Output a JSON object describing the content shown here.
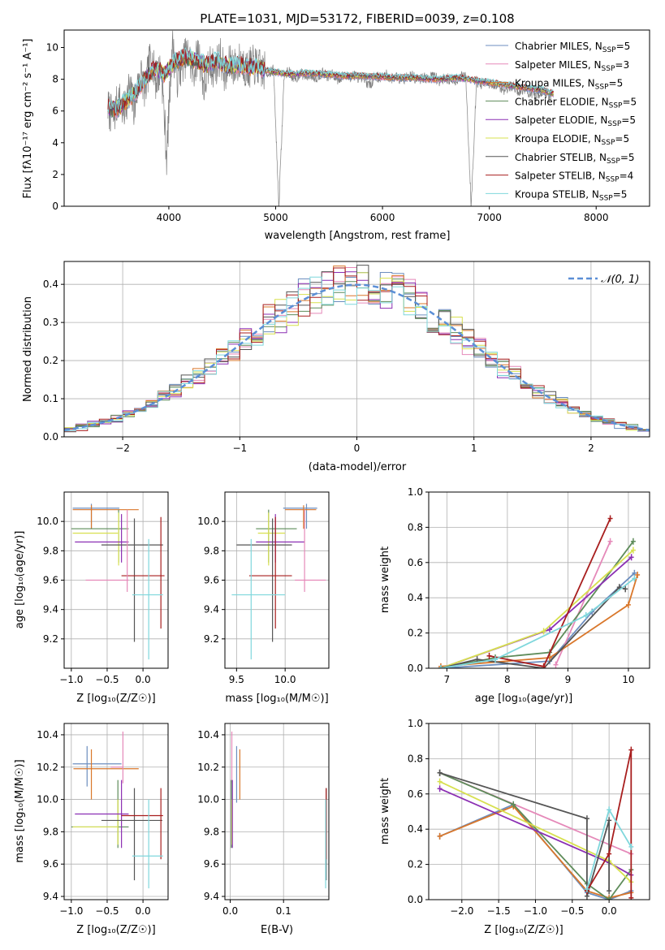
{
  "chart_data": [
    {
      "id": "spectrum",
      "type": "line",
      "title": "PLATE=1031, MJD=53172, FIBERID=0039, z=0.108",
      "xlabel": "wavelength [Angstrom, rest frame]",
      "ylabel": "Flux [fλ10⁻¹⁷ erg cm⁻² s⁻¹ A⁻¹]",
      "xlim": [
        3020,
        8500
      ],
      "ylim": [
        0,
        11.1
      ],
      "xticks": [
        4000,
        5000,
        6000,
        7000,
        8000
      ],
      "yticks": [
        0,
        2,
        4,
        6,
        8,
        10
      ],
      "grid": false,
      "legend_position": "right",
      "observed_color": "#808080",
      "observed": {
        "x": [
          3430,
          3480,
          3530,
          3580,
          3630,
          3680,
          3730,
          3780,
          3830,
          3880,
          3930,
          3980,
          4030,
          4080,
          4130,
          4180,
          4230,
          4280,
          4330,
          4380,
          4430,
          4480,
          4530,
          4580,
          4630,
          4680,
          4730,
          4780,
          4830,
          4880,
          4930,
          4980,
          5030,
          5080,
          5130,
          5180,
          5230,
          5280,
          5330,
          5380,
          5430,
          5480,
          5530,
          5580,
          5630,
          5680,
          5730,
          5780,
          5830,
          5880,
          5930,
          5980,
          6030,
          6080,
          6130,
          6180,
          6230,
          6280,
          6330,
          6380,
          6430,
          6480,
          6530,
          6580,
          6630,
          6680,
          6730,
          6780,
          6830,
          6880,
          6930,
          6980,
          7030,
          7080,
          7130,
          7180,
          7230,
          7280,
          7330,
          7380,
          7430,
          7480,
          7530,
          7580
        ],
        "y": [
          6.2,
          5.5,
          6.8,
          5.9,
          7.5,
          6.1,
          8.6,
          7.2,
          9.6,
          7.8,
          8.9,
          3.0,
          10.2,
          8.1,
          9.1,
          9.6,
          8.4,
          9.8,
          7.4,
          9.0,
          8.6,
          9.5,
          8.2,
          9.1,
          8.7,
          9.3,
          8.5,
          8.9,
          8.8,
          8.5,
          8.4,
          8.6,
          0.0,
          8.3,
          8.5,
          7.9,
          8.4,
          8.2,
          8.3,
          8.1,
          8.4,
          8.2,
          8.3,
          8.0,
          8.2,
          8.1,
          8.3,
          8.1,
          8.0,
          7.6,
          8.2,
          8.1,
          8.3,
          8.0,
          8.2,
          8.0,
          8.1,
          8.2,
          7.9,
          8.1,
          8.0,
          8.3,
          7.8,
          8.1,
          8.0,
          7.9,
          8.2,
          8.1,
          0.0,
          7.9,
          7.6,
          7.8,
          7.5,
          7.7,
          7.3,
          7.5,
          7.6,
          7.2,
          7.4,
          7.1,
          6.9,
          7.2,
          7.0,
          6.9
        ]
      },
      "model": {
        "x": [
          3430,
          3500,
          3580,
          3650,
          3720,
          3800,
          3880,
          3960,
          4050,
          4150,
          4250,
          4350,
          4450,
          4550,
          4650,
          4750,
          4850,
          4950,
          5050,
          5150,
          5300,
          5500,
          5700,
          5900,
          6100,
          6300,
          6500,
          6700,
          6900,
          7100,
          7300,
          7500,
          7600
        ],
        "y": [
          6.2,
          6.1,
          6.5,
          6.9,
          7.5,
          8.2,
          8.7,
          8.3,
          9.1,
          9.4,
          9.2,
          8.9,
          9.2,
          8.8,
          8.9,
          8.8,
          8.7,
          8.5,
          8.4,
          8.3,
          8.4,
          8.3,
          8.2,
          8.2,
          8.1,
          8.1,
          8.0,
          8.1,
          7.9,
          7.7,
          7.5,
          7.3,
          7.1
        ]
      },
      "series": [
        {
          "name": "Chabrier MILES, N_SSP=5",
          "label_main": "Chabrier MILES, N",
          "label_sub": "SSP",
          "label_tail": "=5",
          "color": "#6c8ebf"
        },
        {
          "name": "Salpeter MILES, N_SSP=3",
          "label_main": "Salpeter MILES, N",
          "label_sub": "SSP",
          "label_tail": "=3",
          "color": "#e589b9"
        },
        {
          "name": "Kroupa MILES, N_SSP=5",
          "label_main": "Kroupa MILES, N",
          "label_sub": "SSP",
          "label_tail": "=5",
          "color": "#d9772b"
        },
        {
          "name": "Chabrier ELODIE, N_SSP=5",
          "label_main": "Chabrier ELODIE, N",
          "label_sub": "SSP",
          "label_tail": "=5",
          "color": "#5e8c5a"
        },
        {
          "name": "Salpeter ELODIE, N_SSP=5",
          "label_main": "Salpeter ELODIE, N",
          "label_sub": "SSP",
          "label_tail": "=5",
          "color": "#8b2fb3"
        },
        {
          "name": "Kroupa ELODIE, N_SSP=5",
          "label_main": "Kroupa ELODIE, N",
          "label_sub": "SSP",
          "label_tail": "=5",
          "color": "#d7e04f"
        },
        {
          "name": "Chabrier STELIB, N_SSP=5",
          "label_main": "Chabrier STELIB, N",
          "label_sub": "SSP",
          "label_tail": "=5",
          "color": "#555555"
        },
        {
          "name": "Salpeter STELIB, N_SSP=4",
          "label_main": "Salpeter STELIB, N",
          "label_sub": "SSP",
          "label_tail": "=4",
          "color": "#a81e1e"
        },
        {
          "name": "Kroupa STELIB, N_SSP=5",
          "label_main": "Kroupa STELIB, N",
          "label_sub": "SSP",
          "label_tail": "=5",
          "color": "#7fd7dc"
        }
      ]
    },
    {
      "id": "residuals",
      "type": "line",
      "xlabel": "(data-model)/error",
      "ylabel": "Normed distribution",
      "xlim": [
        -2.5,
        2.5
      ],
      "ylim": [
        0,
        0.46
      ],
      "xticks": [
        -2,
        -1,
        0,
        1,
        2
      ],
      "yticks": [
        0.0,
        0.1,
        0.2,
        0.3,
        0.4
      ],
      "grid": true,
      "legend_position": "top-right",
      "gaussian": {
        "label": "𝒩(0, 1)",
        "color": "#5b8fd6",
        "style": "dashed"
      },
      "bin_width": 0.1
    },
    {
      "id": "age_vs_z",
      "type": "scatter",
      "xlabel": "Z [log₁₀(Z/Z☉)]",
      "ylabel": "age  [log₁₀(age/yr)]",
      "xlim": [
        -1.1,
        0.35
      ],
      "ylim": [
        9.0,
        10.2
      ],
      "xticks": [
        -1.0,
        -0.5,
        0.0
      ],
      "yticks": [
        9.2,
        9.4,
        9.6,
        9.8,
        10.0
      ],
      "grid": true,
      "points": [
        {
          "series": 0,
          "x": -0.72,
          "y": 10.09,
          "xlo": -0.98,
          "xhi": -0.33,
          "ylo": 9.95,
          "yhi": 10.12
        },
        {
          "series": 2,
          "x": -0.72,
          "y": 10.08,
          "xlo": -0.98,
          "xhi": -0.06,
          "ylo": 9.95,
          "yhi": 10.11
        },
        {
          "series": 3,
          "x": -0.34,
          "y": 9.95,
          "xlo": -1.0,
          "xhi": -0.2,
          "ylo": 9.72,
          "yhi": 10.08
        },
        {
          "series": 5,
          "x": -0.34,
          "y": 9.92,
          "xlo": -0.98,
          "xhi": -0.35,
          "ylo": 9.7,
          "yhi": 10.06
        },
        {
          "series": 4,
          "x": -0.3,
          "y": 9.86,
          "xlo": -0.95,
          "xhi": -0.2,
          "ylo": 9.72,
          "yhi": 10.05
        },
        {
          "series": 6,
          "x": -0.12,
          "y": 9.84,
          "xlo": -0.58,
          "xhi": 0.28,
          "ylo": 9.18,
          "yhi": 10.02
        },
        {
          "series": 7,
          "x": 0.25,
          "y": 9.63,
          "xlo": -0.3,
          "xhi": 0.3,
          "ylo": 9.27,
          "yhi": 10.03
        },
        {
          "series": 1,
          "x": -0.22,
          "y": 9.6,
          "xlo": -0.8,
          "xhi": -0.2,
          "ylo": 9.52,
          "yhi": 10.08
        },
        {
          "series": 8,
          "x": 0.08,
          "y": 9.5,
          "xlo": -0.15,
          "xhi": 0.28,
          "ylo": 9.06,
          "yhi": 9.88
        }
      ]
    },
    {
      "id": "age_vs_mass",
      "type": "scatter",
      "xlabel": "mass [log₁₀(M/M☉)]",
      "ylabel": "",
      "xlim": [
        9.38,
        10.45
      ],
      "ylim": [
        9.0,
        10.2
      ],
      "xticks": [
        9.5,
        10.0
      ],
      "yticks": [
        9.2,
        9.4,
        9.6,
        9.8,
        10.0
      ],
      "grid": true,
      "points": [
        {
          "series": 0,
          "x": 10.22,
          "y": 10.09,
          "xlo": 9.98,
          "xhi": 10.33,
          "ylo": 9.95,
          "yhi": 10.12
        },
        {
          "series": 2,
          "x": 10.19,
          "y": 10.08,
          "xlo": 10.0,
          "xhi": 10.32,
          "ylo": 9.95,
          "yhi": 10.11
        },
        {
          "series": 3,
          "x": 9.83,
          "y": 9.95,
          "xlo": 9.7,
          "xhi": 10.12,
          "ylo": 9.72,
          "yhi": 10.08
        },
        {
          "series": 5,
          "x": 9.83,
          "y": 9.92,
          "xlo": 9.72,
          "xhi": 10.0,
          "ylo": 9.7,
          "yhi": 10.06
        },
        {
          "series": 4,
          "x": 9.9,
          "y": 9.86,
          "xlo": 9.7,
          "xhi": 10.2,
          "ylo": 9.72,
          "yhi": 10.05
        },
        {
          "series": 6,
          "x": 9.87,
          "y": 9.84,
          "xlo": 9.5,
          "xhi": 10.07,
          "ylo": 9.18,
          "yhi": 10.02
        },
        {
          "series": 7,
          "x": 9.9,
          "y": 9.63,
          "xlo": 9.63,
          "xhi": 10.07,
          "ylo": 9.27,
          "yhi": 10.03
        },
        {
          "series": 1,
          "x": 10.2,
          "y": 9.6,
          "xlo": 10.1,
          "xhi": 10.42,
          "ylo": 9.52,
          "yhi": 10.08
        },
        {
          "series": 8,
          "x": 9.65,
          "y": 9.5,
          "xlo": 9.45,
          "xhi": 10.0,
          "ylo": 9.06,
          "yhi": 9.88
        }
      ]
    },
    {
      "id": "massweight_vs_age",
      "type": "line",
      "xlabel": "age  [log₁₀(age/yr)]",
      "ylabel": "mass weight",
      "xlim": [
        6.7,
        10.35
      ],
      "ylim": [
        0,
        1.0
      ],
      "xticks": [
        7,
        8,
        9,
        10
      ],
      "yticks": [
        0.0,
        0.2,
        0.4,
        0.6,
        0.8,
        1.0
      ],
      "grid": true,
      "series_points": [
        {
          "series": 0,
          "x": [
            6.9,
            8.7,
            9.4,
            10.1
          ],
          "y": [
            0.0,
            0.04,
            0.32,
            0.54
          ]
        },
        {
          "series": 1,
          "x": [
            8.8,
            9.7
          ],
          "y": [
            0.02,
            0.72
          ]
        },
        {
          "series": 2,
          "x": [
            6.9,
            8.7,
            10.0,
            10.15
          ],
          "y": [
            0.01,
            0.06,
            0.36,
            0.53
          ]
        },
        {
          "series": 3,
          "x": [
            6.9,
            7.8,
            8.7,
            10.08
          ],
          "y": [
            0.0,
            0.06,
            0.09,
            0.72
          ]
        },
        {
          "series": 4,
          "x": [
            6.9,
            8.7,
            10.05
          ],
          "y": [
            0.0,
            0.22,
            0.63
          ]
        },
        {
          "series": 5,
          "x": [
            6.9,
            8.6,
            10.08
          ],
          "y": [
            0.0,
            0.21,
            0.67
          ]
        },
        {
          "series": 6,
          "x": [
            6.9,
            7.5,
            8.6,
            9.85,
            9.95
          ],
          "y": [
            0.0,
            0.05,
            0.0,
            0.46,
            0.45
          ]
        },
        {
          "series": 7,
          "x": [
            7.7,
            8.6,
            9.7
          ],
          "y": [
            0.07,
            0.01,
            0.85
          ]
        },
        {
          "series": 8,
          "x": [
            6.9,
            7.8,
            9.3,
            10.1
          ],
          "y": [
            0.0,
            0.05,
            0.3,
            0.51
          ]
        }
      ]
    },
    {
      "id": "mass_vs_z",
      "type": "scatter",
      "xlabel": "Z [log₁₀(Z/Z☉)]",
      "ylabel": "mass [log₁₀(M/M☉)]",
      "xlim": [
        -1.1,
        0.35
      ],
      "ylim": [
        9.38,
        10.47
      ],
      "xticks": [
        -1.0,
        -0.5,
        0.0
      ],
      "yticks": [
        9.4,
        9.6,
        9.8,
        10.0,
        10.2,
        10.4
      ],
      "grid": true,
      "points": [
        {
          "series": 0,
          "x": -0.78,
          "y": 10.22,
          "xlo": -0.98,
          "xhi": -0.3,
          "ylo": 10.08,
          "yhi": 10.33
        },
        {
          "series": 2,
          "x": -0.72,
          "y": 10.19,
          "xlo": -0.97,
          "xhi": -0.06,
          "ylo": 10.0,
          "yhi": 10.31
        },
        {
          "series": 1,
          "x": -0.28,
          "y": 10.2,
          "xlo": -0.45,
          "xhi": -0.28,
          "ylo": 10.1,
          "yhi": 10.42
        },
        {
          "series": 3,
          "x": -0.35,
          "y": 9.83,
          "xlo": -1.0,
          "xhi": -0.2,
          "ylo": 9.7,
          "yhi": 10.12
        },
        {
          "series": 5,
          "x": -0.35,
          "y": 9.83,
          "xlo": -0.98,
          "xhi": -0.35,
          "ylo": 9.72,
          "yhi": 10.0
        },
        {
          "series": 4,
          "x": -0.3,
          "y": 9.91,
          "xlo": -0.95,
          "xhi": -0.2,
          "ylo": 9.7,
          "yhi": 10.12
        },
        {
          "series": 6,
          "x": -0.12,
          "y": 9.87,
          "xlo": -0.58,
          "xhi": 0.27,
          "ylo": 9.5,
          "yhi": 10.07
        },
        {
          "series": 7,
          "x": 0.25,
          "y": 9.9,
          "xlo": -0.3,
          "xhi": 0.28,
          "ylo": 9.63,
          "yhi": 10.07
        },
        {
          "series": 8,
          "x": 0.08,
          "y": 9.65,
          "xlo": -0.15,
          "xhi": 0.28,
          "ylo": 9.45,
          "yhi": 10.0
        }
      ]
    },
    {
      "id": "mass_vs_ebv",
      "type": "scatter",
      "xlabel": "E(B-V)",
      "ylabel": "",
      "xlim": [
        -0.01,
        0.185
      ],
      "ylim": [
        9.38,
        10.47
      ],
      "xticks": [
        0.0,
        0.1
      ],
      "yticks": [
        9.4,
        9.6,
        9.8,
        10.0,
        10.2,
        10.4
      ],
      "grid": true,
      "points": [
        {
          "series": 0,
          "x": 0.012,
          "y": 10.22,
          "ylo": 9.98,
          "yhi": 10.33
        },
        {
          "series": 2,
          "x": 0.018,
          "y": 10.19,
          "ylo": 10.0,
          "yhi": 10.31
        },
        {
          "series": 1,
          "x": 0.003,
          "y": 10.2,
          "ylo": 10.1,
          "yhi": 10.42
        },
        {
          "series": 3,
          "x": 0.002,
          "y": 9.83,
          "ylo": 9.7,
          "yhi": 10.12
        },
        {
          "series": 5,
          "x": 0.003,
          "y": 9.83,
          "ylo": 9.72,
          "yhi": 10.0
        },
        {
          "series": 4,
          "x": 0.004,
          "y": 9.91,
          "ylo": 9.7,
          "yhi": 10.12
        },
        {
          "series": 6,
          "x": 0.18,
          "y": 9.87,
          "ylo": 9.5,
          "yhi": 10.07
        },
        {
          "series": 7,
          "x": 0.18,
          "y": 9.9,
          "ylo": 9.63,
          "yhi": 10.07
        },
        {
          "series": 8,
          "x": 0.179,
          "y": 9.65,
          "ylo": 9.45,
          "yhi": 10.0
        }
      ]
    },
    {
      "id": "massweight_vs_z",
      "type": "line",
      "xlabel": "Z [log₁₀(Z/Z☉)]",
      "ylabel": "mass weight",
      "xlim": [
        -2.45,
        0.55
      ],
      "ylim": [
        0,
        1.0
      ],
      "xticks": [
        -2.0,
        -1.5,
        -1.0,
        -0.5,
        0.0
      ],
      "yticks": [
        0.0,
        0.2,
        0.4,
        0.6,
        0.8,
        1.0
      ],
      "grid": true,
      "series_points": [
        {
          "series": 0,
          "x": [
            -2.3,
            -1.3,
            -0.3,
            0.0,
            0.3
          ],
          "y": [
            0.36,
            0.54,
            0.04,
            0.0,
            0.05
          ]
        },
        {
          "series": 1,
          "x": [
            -2.3,
            0.3
          ],
          "y": [
            0.72,
            0.26
          ]
        },
        {
          "series": 2,
          "x": [
            -2.3,
            -1.3,
            -0.3,
            0.0,
            0.3
          ],
          "y": [
            0.36,
            0.53,
            0.05,
            0.01,
            0.04
          ]
        },
        {
          "series": 3,
          "x": [
            -2.3,
            -1.3,
            -0.3,
            0.0,
            0.3
          ],
          "y": [
            0.72,
            0.54,
            0.09,
            0.0,
            0.17
          ]
        },
        {
          "series": 4,
          "x": [
            -2.3,
            0.0,
            0.3
          ],
          "y": [
            0.63,
            0.21,
            0.14
          ]
        },
        {
          "series": 5,
          "x": [
            -2.3,
            0.0,
            0.3
          ],
          "y": [
            0.67,
            0.22,
            0.1
          ]
        },
        {
          "series": 6,
          "x": [
            -2.3,
            -0.3,
            -0.3,
            0.0,
            0.0
          ],
          "y": [
            0.72,
            0.46,
            0.02,
            0.45,
            0.05
          ]
        },
        {
          "series": 7,
          "x": [
            -0.3,
            0.0,
            0.3,
            0.3
          ],
          "y": [
            0.05,
            0.26,
            0.85,
            0.01
          ]
        },
        {
          "series": 8,
          "x": [
            -0.3,
            0.0,
            0.3
          ],
          "y": [
            0.06,
            0.51,
            0.3
          ]
        }
      ]
    }
  ]
}
